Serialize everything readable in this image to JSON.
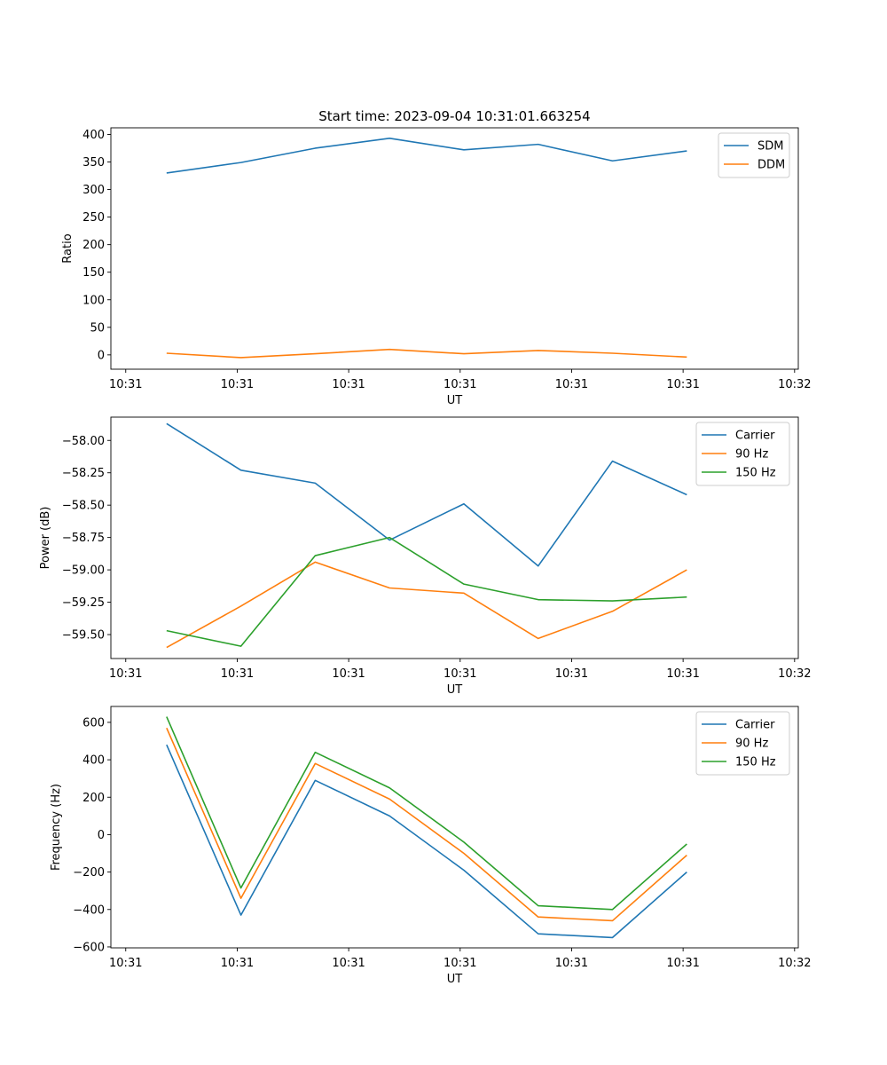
{
  "figure": {
    "title": "Start time: 2023-09-04 10:31:01.663254"
  },
  "chart_data": [
    {
      "type": "line",
      "title": "Start time: 2023-09-04 10:31:01.663254",
      "xlabel": "UT",
      "ylabel": "Ratio",
      "x": [
        1,
        2,
        3,
        4,
        5,
        6,
        7,
        8
      ],
      "xlim": [
        0.25,
        9.5
      ],
      "x_ticks": [
        0.45,
        1.95,
        3.45,
        4.95,
        6.45,
        7.95,
        9.45
      ],
      "x_tick_labels": [
        "10:31",
        "10:31",
        "10:31",
        "10:31",
        "10:31",
        "10:31",
        "10:32"
      ],
      "ylim": [
        -26,
        412
      ],
      "y_ticks": [
        0,
        50,
        100,
        150,
        200,
        250,
        300,
        350,
        400
      ],
      "y_tick_labels": [
        "0",
        "50",
        "100",
        "150",
        "200",
        "250",
        "300",
        "350",
        "400"
      ],
      "legend": "upper-right",
      "series": [
        {
          "name": "SDM",
          "color": "#1f77b4",
          "values": [
            330,
            349,
            375,
            393,
            372,
            382,
            352,
            370
          ]
        },
        {
          "name": "DDM",
          "color": "#ff7f0e",
          "values": [
            3,
            -5,
            2,
            10,
            2,
            8,
            3,
            -4
          ]
        }
      ]
    },
    {
      "type": "line",
      "title": "",
      "xlabel": "UT",
      "ylabel": "Power (dB)",
      "x": [
        1,
        2,
        3,
        4,
        5,
        6,
        7,
        8
      ],
      "xlim": [
        0.25,
        9.5
      ],
      "x_ticks": [
        0.45,
        1.95,
        3.45,
        4.95,
        6.45,
        7.95,
        9.45
      ],
      "x_tick_labels": [
        "10:31",
        "10:31",
        "10:31",
        "10:31",
        "10:31",
        "10:31",
        "10:32"
      ],
      "ylim": [
        -59.685,
        -57.82
      ],
      "y_ticks": [
        -59.5,
        -59.25,
        -59.0,
        -58.75,
        -58.5,
        -58.25,
        -58.0
      ],
      "y_tick_labels": [
        "−59.50",
        "−59.25",
        "−59.00",
        "−58.75",
        "−58.50",
        "−58.25",
        "−58.00"
      ],
      "legend": "upper-right",
      "series": [
        {
          "name": "Carrier",
          "color": "#1f77b4",
          "values": [
            -57.87,
            -58.23,
            -58.33,
            -58.77,
            -58.49,
            -58.97,
            -58.16,
            -58.42
          ]
        },
        {
          "name": "90 Hz",
          "color": "#ff7f0e",
          "values": [
            -59.6,
            -59.28,
            -58.94,
            -59.14,
            -59.18,
            -59.53,
            -59.32,
            -59.0
          ]
        },
        {
          "name": "150 Hz",
          "color": "#2ca02c",
          "values": [
            -59.47,
            -59.59,
            -58.89,
            -58.75,
            -59.11,
            -59.23,
            -59.24,
            -59.21
          ]
        }
      ]
    },
    {
      "type": "line",
      "title": "",
      "xlabel": "UT",
      "ylabel": "Frequency (Hz)",
      "x": [
        1,
        2,
        3,
        4,
        5,
        6,
        7,
        8
      ],
      "xlim": [
        0.25,
        9.5
      ],
      "x_ticks": [
        0.45,
        1.95,
        3.45,
        4.95,
        6.45,
        7.95,
        9.45
      ],
      "x_tick_labels": [
        "10:31",
        "10:31",
        "10:31",
        "10:31",
        "10:31",
        "10:31",
        "10:32"
      ],
      "ylim": [
        -605,
        685
      ],
      "y_ticks": [
        -600,
        -400,
        -200,
        0,
        200,
        400,
        600
      ],
      "y_tick_labels": [
        "−600",
        "−400",
        "−200",
        "0",
        "200",
        "400",
        "600"
      ],
      "legend": "upper-right",
      "series": [
        {
          "name": "Carrier",
          "color": "#1f77b4",
          "values": [
            480,
            -430,
            290,
            100,
            -190,
            -530,
            -550,
            -200
          ]
        },
        {
          "name": "90 Hz",
          "color": "#ff7f0e",
          "values": [
            570,
            -340,
            380,
            190,
            -100,
            -440,
            -460,
            -110
          ]
        },
        {
          "name": "150 Hz",
          "color": "#2ca02c",
          "values": [
            630,
            -285,
            440,
            250,
            -40,
            -380,
            -400,
            -50
          ]
        }
      ]
    }
  ]
}
